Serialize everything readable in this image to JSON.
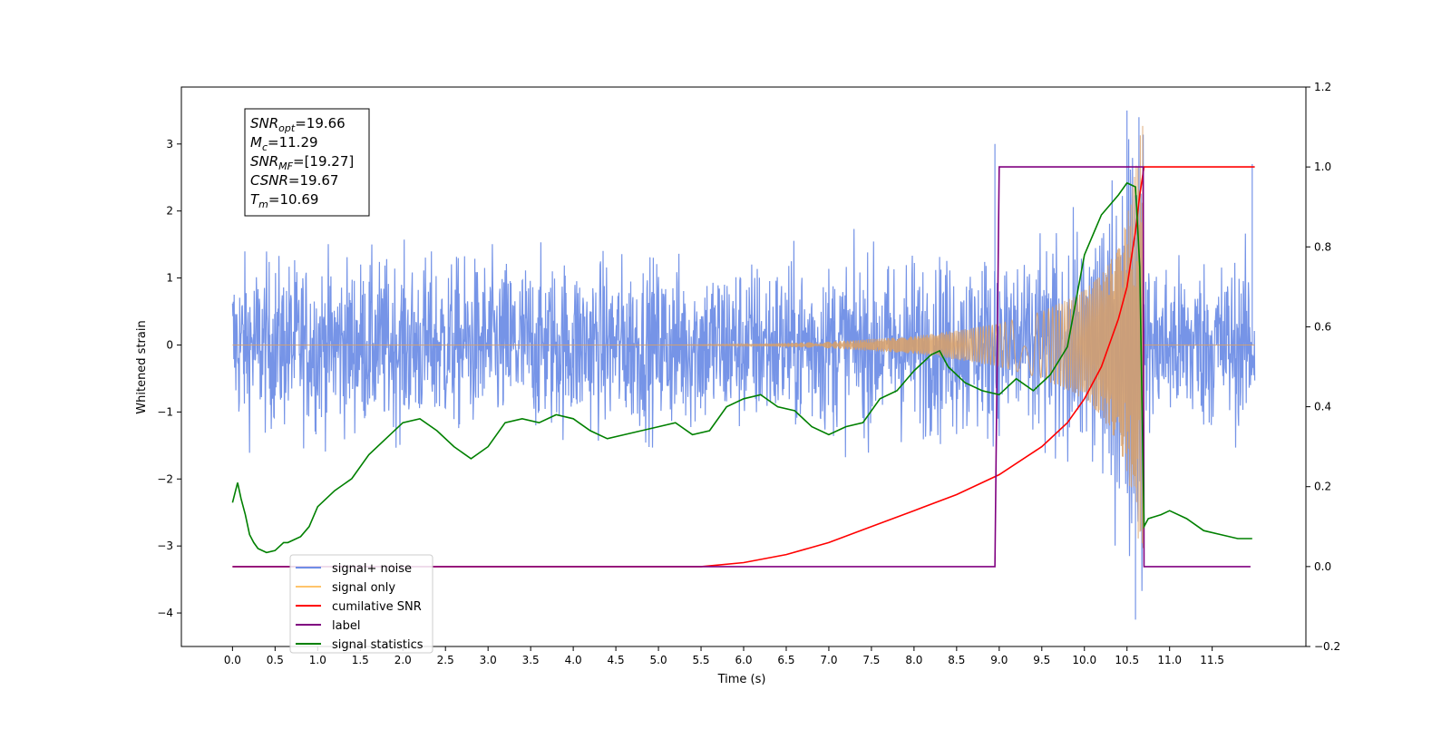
{
  "chart_data": {
    "type": "line",
    "title": "",
    "xlabel": "Time (s)",
    "ylabel": "Whitened strain",
    "ylabel_right": "",
    "xlim": [
      -0.6,
      12.6
    ],
    "ylim": [
      -4.5,
      3.85
    ],
    "ylim_right": [
      -0.2,
      1.2
    ],
    "grid": false,
    "x_ticks": [
      "0.0",
      "0.5",
      "1.0",
      "1.5",
      "2.0",
      "2.5",
      "3.0",
      "3.5",
      "4.0",
      "4.5",
      "5.0",
      "5.5",
      "6.0",
      "6.5",
      "7.0",
      "7.5",
      "8.0",
      "8.5",
      "9.0",
      "9.5",
      "10.0",
      "10.5",
      "11.0",
      "11.5"
    ],
    "y_ticks_left": [
      "3",
      "2",
      "1",
      "0",
      "−1",
      "−2",
      "−3",
      "−4"
    ],
    "y_ticks_right": [
      "1.2",
      "1.0",
      "0.8",
      "0.6",
      "0.4",
      "0.2",
      "0.0",
      "−0.2"
    ],
    "annotation": {
      "lines": [
        {
          "base": "SNR",
          "sub": "opt",
          "rest": "=19.66"
        },
        {
          "base": "M",
          "sub": "c",
          "rest": "=11.29"
        },
        {
          "base": "SNR",
          "sub": "MF",
          "rest": "=[19.27]"
        },
        {
          "base": "CSNR",
          "sub": "",
          "rest": "=19.67"
        },
        {
          "base": "T",
          "sub": "m",
          "rest": "=10.69"
        }
      ]
    },
    "legend": {
      "placement": "lower-left",
      "entries": [
        {
          "label": "signal+ noise",
          "color": "#6f8ee6"
        },
        {
          "label": "signal only",
          "color": "#ffc46b"
        },
        {
          "label": "cumilative SNR",
          "color": "#ff0000"
        },
        {
          "label": "label",
          "color": "#800080"
        },
        {
          "label": "signal statistics",
          "color": "#008000"
        }
      ]
    },
    "series": [
      {
        "name": "signal+ noise",
        "axis": "left",
        "color": "#6f8ee6",
        "description_range": {
          "x_start": 0.0,
          "x_end": 12.0,
          "y_min": -4.1,
          "y_max": 3.5,
          "typical_amplitude": 1.2
        },
        "notable_peaks": [
          {
            "x": 10.5,
            "y": 3.5
          },
          {
            "x": 10.64,
            "y": 3.4
          },
          {
            "x": 10.6,
            "y": -4.1
          },
          {
            "x": 8.95,
            "y": 3.0
          },
          {
            "x": 11.97,
            "y": 2.7
          }
        ]
      },
      {
        "name": "signal only",
        "axis": "left",
        "color": "#ffc46b",
        "envelope": {
          "x": [
            0.0,
            5.0,
            6.0,
            7.0,
            8.0,
            8.5,
            9.0,
            9.5,
            9.8,
            10.0,
            10.2,
            10.4,
            10.5,
            10.6,
            10.65,
            10.69,
            10.7,
            12.0
          ],
          "amplitude": [
            0.0,
            0.0,
            0.01,
            0.05,
            0.13,
            0.22,
            0.32,
            0.5,
            0.68,
            0.82,
            1.05,
            1.5,
            1.9,
            2.6,
            3.1,
            3.3,
            0.0,
            0.0
          ]
        }
      },
      {
        "name": "cumilative SNR",
        "axis": "right",
        "color": "#ff0000",
        "x": [
          0.0,
          5.5,
          6.0,
          6.5,
          7.0,
          7.5,
          8.0,
          8.5,
          9.0,
          9.5,
          9.8,
          10.0,
          10.2,
          10.4,
          10.5,
          10.6,
          10.65,
          10.7,
          12.0
        ],
        "y": [
          0.0,
          0.0,
          0.01,
          0.03,
          0.06,
          0.1,
          0.14,
          0.18,
          0.23,
          0.3,
          0.36,
          0.42,
          0.5,
          0.62,
          0.7,
          0.84,
          0.93,
          1.0,
          1.0
        ]
      },
      {
        "name": "label",
        "axis": "right",
        "color": "#800080",
        "x": [
          0.0,
          8.95,
          9.0,
          10.69,
          10.7,
          11.95
        ],
        "y": [
          0.0,
          0.0,
          1.0,
          1.0,
          0.0,
          0.0
        ]
      },
      {
        "name": "signal statistics",
        "axis": "right",
        "color": "#008000",
        "x": [
          0.0,
          0.06,
          0.1,
          0.15,
          0.2,
          0.25,
          0.3,
          0.4,
          0.5,
          0.6,
          0.65,
          0.8,
          0.9,
          1.0,
          1.1,
          1.2,
          1.4,
          1.6,
          1.8,
          2.0,
          2.2,
          2.4,
          2.6,
          2.8,
          3.0,
          3.2,
          3.4,
          3.6,
          3.8,
          4.0,
          4.2,
          4.4,
          4.6,
          4.8,
          5.0,
          5.2,
          5.4,
          5.6,
          5.8,
          6.0,
          6.2,
          6.4,
          6.6,
          6.8,
          7.0,
          7.2,
          7.4,
          7.6,
          7.8,
          8.0,
          8.2,
          8.3,
          8.4,
          8.6,
          8.8,
          9.0,
          9.2,
          9.4,
          9.6,
          9.8,
          10.0,
          10.2,
          10.4,
          10.5,
          10.6,
          10.65,
          10.7,
          10.75,
          10.9,
          11.0,
          11.2,
          11.4,
          11.6,
          11.8,
          11.97
        ],
        "y": [
          0.16,
          0.21,
          0.17,
          0.13,
          0.08,
          0.06,
          0.045,
          0.035,
          0.04,
          0.06,
          0.06,
          0.075,
          0.1,
          0.15,
          0.17,
          0.19,
          0.22,
          0.28,
          0.32,
          0.36,
          0.37,
          0.34,
          0.3,
          0.27,
          0.3,
          0.36,
          0.37,
          0.36,
          0.38,
          0.37,
          0.34,
          0.32,
          0.33,
          0.34,
          0.35,
          0.36,
          0.33,
          0.34,
          0.4,
          0.42,
          0.43,
          0.4,
          0.39,
          0.35,
          0.33,
          0.35,
          0.36,
          0.42,
          0.44,
          0.49,
          0.53,
          0.54,
          0.5,
          0.46,
          0.44,
          0.43,
          0.47,
          0.44,
          0.48,
          0.55,
          0.78,
          0.88,
          0.93,
          0.96,
          0.95,
          0.75,
          0.1,
          0.12,
          0.13,
          0.14,
          0.12,
          0.09,
          0.08,
          0.07,
          0.07
        ]
      }
    ]
  }
}
